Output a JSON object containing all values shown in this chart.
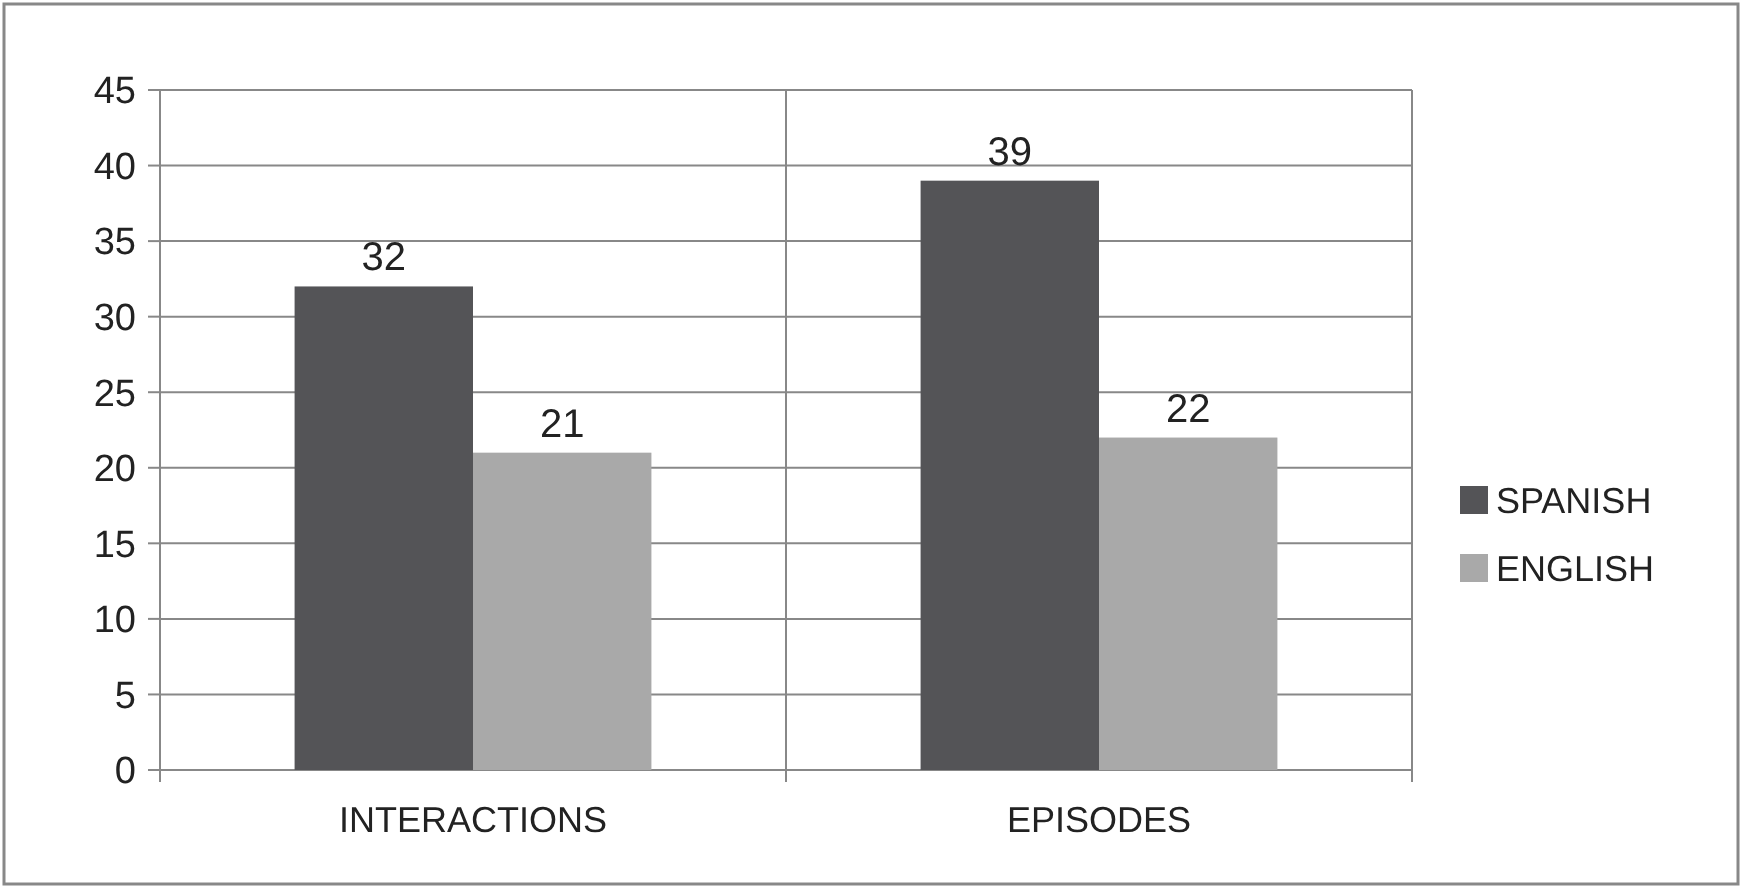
{
  "chart_data": {
    "type": "bar",
    "categories": [
      "INTERACTIONS",
      "EPISODES"
    ],
    "series": [
      {
        "name": "SPANISH",
        "color": "#545457",
        "values": [
          32,
          39
        ]
      },
      {
        "name": "ENGLISH",
        "color": "#a9a9a9",
        "values": [
          21,
          22
        ]
      }
    ],
    "ylim": [
      0,
      45
    ],
    "yticks": [
      0,
      5,
      10,
      15,
      20,
      25,
      30,
      35,
      40,
      45
    ],
    "grid": true,
    "legend": "right",
    "data_labels": true
  }
}
